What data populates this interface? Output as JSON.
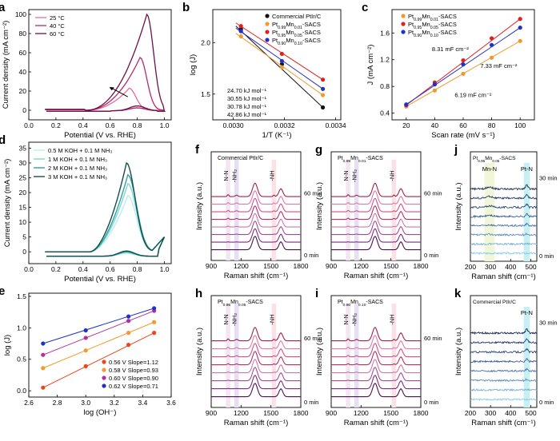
{
  "chart_data": [
    {
      "panel": "a",
      "type": "line",
      "xlabel": "Potential (V vs. RHE)",
      "ylabel": "Current density (mA cm⁻²)",
      "xlim": [
        0.0,
        1.05
      ],
      "ylim": [
        -10,
        105
      ],
      "xticks": [
        0.0,
        0.2,
        0.4,
        0.6,
        0.8,
        1.0
      ],
      "yticks": [
        0,
        20,
        40,
        60,
        80,
        100
      ],
      "legend": "top-left",
      "annotation": "arrow pointing up-left",
      "series": [
        {
          "name": "25 °C",
          "color": "#e0709a",
          "peak_x": 0.74,
          "peak_y": 23,
          "back_y": 3
        },
        {
          "name": "40 °C",
          "color": "#b42a70",
          "peak_x": 0.82,
          "peak_y": 55,
          "back_y": 3
        },
        {
          "name": "60 °C",
          "color": "#6e1048",
          "peak_x": 0.87,
          "peak_y": 100,
          "back_y": 5
        }
      ]
    },
    {
      "panel": "b",
      "type": "scatter",
      "xlabel": "1/T (K⁻¹)",
      "ylabel": "log (J)",
      "xlim": [
        0.00292,
        0.00342
      ],
      "ylim": [
        1.25,
        2.32
      ],
      "xticks": [
        0.003,
        0.0032,
        0.0034
      ],
      "yticks": [
        1.5,
        2.0
      ],
      "legend": "top-right",
      "series": [
        {
          "name": "Commercial PtIr/C",
          "color": "#111111",
          "x": [
            0.00303,
            0.00319,
            0.00335
          ],
          "y": [
            2.13,
            1.79,
            1.37
          ],
          "ea": "42.86 kJ mol⁻¹"
        },
        {
          "name": "Pt0.99Mn0.01-SACS",
          "color": "#f09a2a",
          "x": [
            0.00303,
            0.00319,
            0.00335
          ],
          "y": [
            2.06,
            1.76,
            1.49
          ],
          "ea": "30.78 kJ mol⁻¹"
        },
        {
          "name": "Pt0.95Mn0.05-SACS",
          "color": "#e02020",
          "x": [
            0.00303,
            0.00319,
            0.00335
          ],
          "y": [
            2.16,
            1.89,
            1.64
          ],
          "ea": "24.70 kJ mol⁻¹"
        },
        {
          "name": "Pt0.90Mn0.10-SACS",
          "color": "#2030c8",
          "x": [
            0.00303,
            0.00319,
            0.00335
          ],
          "y": [
            2.11,
            1.82,
            1.55
          ],
          "ea": "30.55 kJ mol⁻¹"
        }
      ]
    },
    {
      "panel": "c",
      "type": "scatter",
      "xlabel": "Scan rate (mV s⁻¹)",
      "ylabel": "J (mA cm⁻²)",
      "xlim": [
        10,
        110
      ],
      "ylim": [
        0.3,
        1.95
      ],
      "xticks": [
        20,
        40,
        60,
        80,
        100
      ],
      "yticks": [
        0.4,
        0.8,
        1.2,
        1.6
      ],
      "legend": "top-left",
      "series": [
        {
          "name": "Pt0.99Mn0.01-SACS",
          "color": "#f09a2a",
          "x": [
            20,
            40,
            60,
            80,
            100
          ],
          "y": [
            0.5,
            0.74,
            0.99,
            1.23,
            1.48
          ],
          "cdl": "6.19 mF cm⁻²"
        },
        {
          "name": "Pt0.95Mn0.05-SACS",
          "color": "#e02020",
          "x": [
            20,
            40,
            60,
            80,
            100
          ],
          "y": [
            0.52,
            0.86,
            1.19,
            1.52,
            1.81
          ],
          "cdl": "8.31 mF cm⁻²"
        },
        {
          "name": "Pt0.90Mn0.10-SACS",
          "color": "#2030c8",
          "x": [
            20,
            40,
            60,
            80,
            100
          ],
          "y": [
            0.53,
            0.83,
            1.13,
            1.42,
            1.68
          ],
          "cdl": "7.33 mF cm⁻²"
        }
      ]
    },
    {
      "panel": "d",
      "type": "line",
      "xlabel": "Potential (V vs. RHE)",
      "ylabel": "Current density (mA cm⁻²)",
      "xlim": [
        0.0,
        1.05
      ],
      "ylim": [
        -4,
        37
      ],
      "xticks": [
        0.0,
        0.2,
        0.4,
        0.6,
        0.8,
        1.0
      ],
      "yticks": [
        0,
        5,
        10,
        15,
        20,
        25,
        30,
        35
      ],
      "legend": "top-left",
      "series": [
        {
          "name": "0.5 M KOH + 0.1 M NH₃",
          "color": "#b8eef0",
          "peak_x": 0.73,
          "peak_y": 19
        },
        {
          "name": "1 M KOH + 0.1 M NH₃",
          "color": "#7fd6d6",
          "peak_x": 0.73,
          "peak_y": 23
        },
        {
          "name": "2 M KOH + 0.1 M NH₃",
          "color": "#35a0a0",
          "peak_x": 0.73,
          "peak_y": 26
        },
        {
          "name": "3 M KOH + 0.1 M NH₃",
          "color": "#0f4f4f",
          "peak_x": 0.72,
          "peak_y": 30
        }
      ]
    },
    {
      "panel": "e",
      "type": "scatter",
      "xlabel": "log (OH⁻)",
      "ylabel": "log (J)",
      "xlim": [
        2.6,
        3.6
      ],
      "ylim": [
        -0.1,
        1.55
      ],
      "xticks": [
        2.6,
        2.8,
        3.0,
        3.2,
        3.4,
        3.6
      ],
      "yticks": [
        0.0,
        0.5,
        1.0,
        1.5
      ],
      "legend": "bottom-right",
      "series": [
        {
          "name": "0.56 V Slope=1.12",
          "color": "#f0451c",
          "x": [
            2.7,
            3.0,
            3.3,
            3.48
          ],
          "y": [
            0.05,
            0.39,
            0.73,
            0.92
          ]
        },
        {
          "name": "0.58 V Slope=0.93",
          "color": "#f39a2a",
          "x": [
            2.7,
            3.0,
            3.3,
            3.48
          ],
          "y": [
            0.36,
            0.64,
            0.92,
            1.09
          ]
        },
        {
          "name": "0.60 V Slope=0.90",
          "color": "#b0319a",
          "x": [
            2.7,
            3.0,
            3.3,
            3.48
          ],
          "y": [
            0.57,
            0.84,
            1.11,
            1.27
          ]
        },
        {
          "name": "0.62 V Slope=0.71",
          "color": "#2030c8",
          "x": [
            2.7,
            3.0,
            3.3,
            3.48
          ],
          "y": [
            0.75,
            0.96,
            1.18,
            1.31
          ]
        }
      ]
    }
  ],
  "raman_panels": [
    {
      "panel": "f",
      "title": "Commercial PtIr/C",
      "type": "wide",
      "bands": [
        "N-N",
        "-NH₂",
        "-NH"
      ],
      "time_top": "60 min",
      "time_bottom": "0 min"
    },
    {
      "panel": "g",
      "title": "Pt0.99Mn0.01-SACS",
      "type": "wide",
      "bands": [
        "N-N",
        "-NH₂",
        "-NH"
      ],
      "time_top": "60 min",
      "time_bottom": "0 min"
    },
    {
      "panel": "h",
      "title": "Pt0.95Mn0.05-SACS",
      "type": "wide",
      "bands": [
        "N-N",
        "-NH₂",
        "-NH"
      ],
      "time_top": "60 min",
      "time_bottom": "0 min"
    },
    {
      "panel": "i",
      "title": "Pt0.90Mn0.10-SACS",
      "type": "wide",
      "bands": [
        "N-N",
        "-NH₂",
        "-NH"
      ],
      "time_top": "60 min",
      "time_bottom": "0 min"
    },
    {
      "panel": "j",
      "title": "Pt0.95Mn0.05-SACS",
      "type": "low",
      "bands": [
        "Mn-N",
        "Pt-N"
      ],
      "time_top": "30 min",
      "time_bottom": "0 min"
    },
    {
      "panel": "k",
      "title": "Commercial PtIr/C",
      "type": "low",
      "bands": [
        "Pt-N"
      ],
      "time_top": "30 min",
      "time_bottom": "0 min"
    }
  ],
  "raman_common": {
    "xlabel": "Raman shift (cm⁻¹)",
    "ylabel": "Intensity (a.u.)",
    "wide_xticks": [
      900,
      1200,
      1500,
      1800
    ],
    "low_xticks": [
      200,
      300,
      400,
      500
    ],
    "wide_colors": [
      "#4a1050",
      "#7a2d80",
      "#a04c94",
      "#c77aac",
      "#b03068",
      "#d0508a",
      "#e079a8",
      "#a0204f"
    ],
    "low_colors": [
      "#87cce8",
      "#74b0d8",
      "#5f8fc2",
      "#4c73ad",
      "#3d5d95",
      "#2f4b80",
      "#243b6a",
      "#172a52"
    ]
  }
}
